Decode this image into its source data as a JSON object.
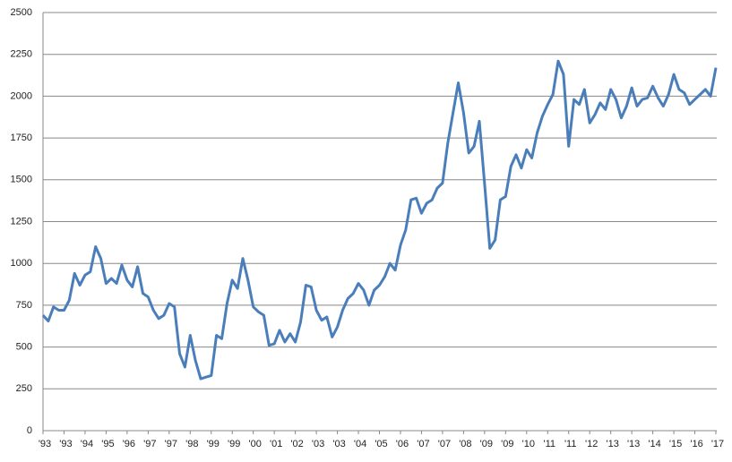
{
  "chart_data": {
    "type": "line",
    "categories": [
      "'93",
      null,
      null,
      null,
      "'93",
      null,
      null,
      null,
      "'94",
      null,
      null,
      null,
      "'95",
      null,
      null,
      null,
      "'96",
      null,
      null,
      null,
      "'97",
      null,
      null,
      null,
      "'97",
      null,
      null,
      null,
      "'98",
      null,
      null,
      null,
      "'99",
      null,
      null,
      null,
      "'99",
      null,
      null,
      null,
      "'00",
      null,
      null,
      null,
      "'01",
      null,
      null,
      null,
      "'02",
      null,
      null,
      null,
      "'03",
      null,
      null,
      null,
      "'03",
      null,
      null,
      null,
      "'04",
      null,
      null,
      null,
      "'05",
      null,
      null,
      null,
      "'06",
      null,
      null,
      null,
      "'07",
      null,
      null,
      null,
      "'07",
      null,
      null,
      null,
      "'08",
      null,
      null,
      null,
      "'09",
      null,
      null,
      null,
      "'09",
      null,
      null,
      null,
      "'10",
      null,
      null,
      null,
      "'11",
      null,
      null,
      null,
      "'11",
      null,
      null,
      null,
      "'12",
      null,
      null,
      null,
      "'13",
      null,
      null,
      null,
      "'13",
      null,
      null,
      null,
      "'14",
      null,
      null,
      null,
      "'15",
      null,
      null,
      null,
      "'16",
      null,
      null,
      null,
      "'17"
    ],
    "series": [
      {
        "color": "#4a7ebb",
        "values": [
          690,
          655,
          740,
          720,
          720,
          780,
          940,
          870,
          930,
          950,
          1100,
          1030,
          880,
          910,
          880,
          990,
          900,
          860,
          980,
          820,
          800,
          720,
          670,
          690,
          760,
          740,
          460,
          380,
          570,
          420,
          310,
          320,
          330,
          570,
          550,
          760,
          900,
          850,
          1030,
          900,
          740,
          710,
          690,
          510,
          520,
          600,
          530,
          580,
          530,
          650,
          870,
          860,
          720,
          660,
          680,
          560,
          620,
          720,
          790,
          820,
          880,
          840,
          750,
          840,
          870,
          920,
          1000,
          960,
          1110,
          1200,
          1380,
          1390,
          1300,
          1360,
          1380,
          1450,
          1480,
          1720,
          1900,
          2080,
          1900,
          1660,
          1700,
          1850,
          1480,
          1090,
          1140,
          1380,
          1400,
          1580,
          1650,
          1570,
          1680,
          1630,
          1780,
          1880,
          1950,
          2010,
          2210,
          2130,
          1700,
          1980,
          1950,
          2040,
          1840,
          1890,
          1960,
          1920,
          2040,
          1980,
          1870,
          1940,
          2050,
          1940,
          1980,
          1990,
          2060,
          1990,
          1940,
          2010,
          2130,
          2040,
          2020,
          1950,
          1980,
          2010,
          2040,
          2000,
          2170
        ]
      }
    ],
    "ylim": [
      0,
      2500
    ],
    "yticks": [
      0,
      250,
      500,
      750,
      1000,
      1250,
      1500,
      1750,
      2000,
      2250,
      2500
    ],
    "grid": true
  }
}
